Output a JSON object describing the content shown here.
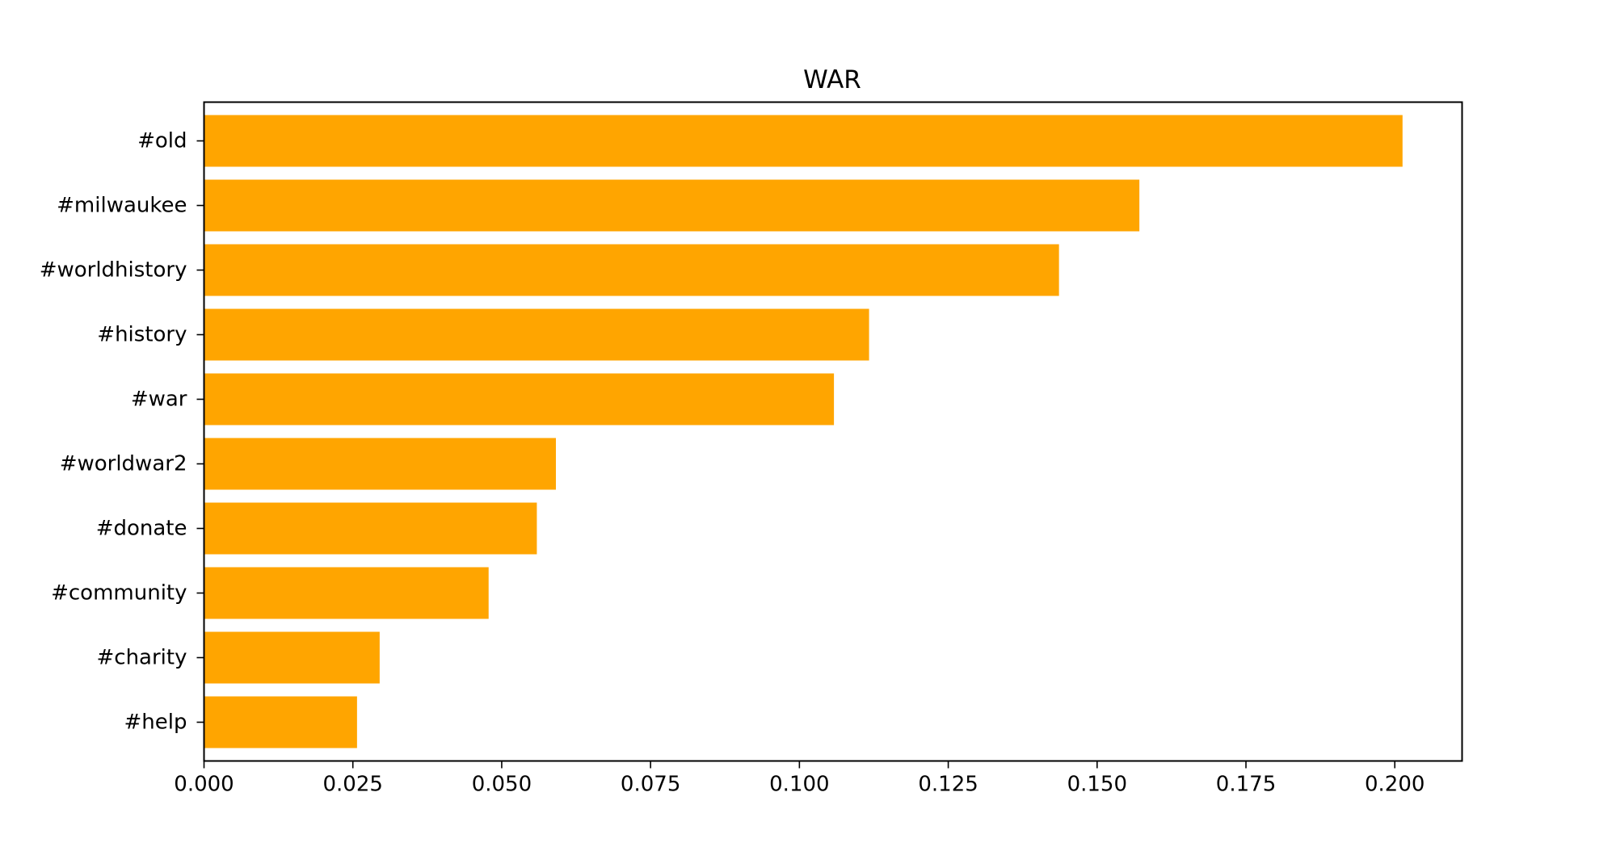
{
  "chart_data": {
    "type": "bar",
    "orientation": "horizontal",
    "title": "WAR",
    "xlabel": "",
    "ylabel": "",
    "categories": [
      "#old",
      "#milwaukee",
      "#worldhistory",
      "#history",
      "#war",
      "#worldwar2",
      "#donate",
      "#community",
      "#charity",
      "#help"
    ],
    "values": [
      0.2013,
      0.1571,
      0.1436,
      0.1117,
      0.1058,
      0.0591,
      0.0559,
      0.0478,
      0.0295,
      0.0257
    ],
    "xlim": [
      0,
      0.2113
    ],
    "xticks": [
      0.0,
      0.025,
      0.05,
      0.075,
      0.1,
      0.125,
      0.15,
      0.175,
      0.2
    ],
    "xtick_labels": [
      "0.000",
      "0.025",
      "0.050",
      "0.075",
      "0.100",
      "0.125",
      "0.150",
      "0.175",
      "0.200"
    ],
    "bar_color": "#ffa500",
    "grid": false,
    "legend": "none"
  }
}
